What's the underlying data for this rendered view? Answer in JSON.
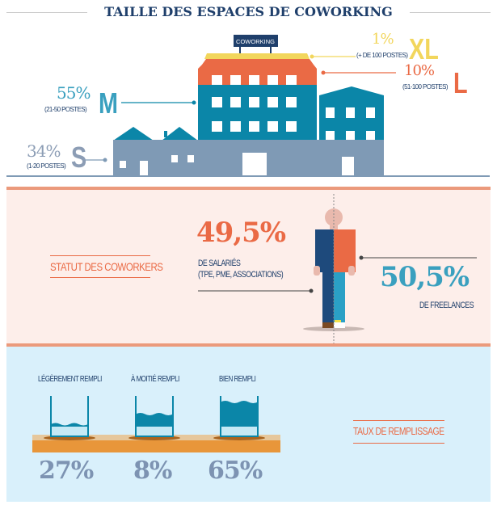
{
  "header": {
    "title": "TAILLE DES ESPACES DE COWORKING"
  },
  "building": {
    "sign": "COWORKING"
  },
  "sizes": [
    {
      "id": "xl",
      "percent": "1%",
      "letter": "XL",
      "range": "(+ DE 100 POSTES)",
      "color": "#f2d65c"
    },
    {
      "id": "l",
      "percent": "10%",
      "letter": "L",
      "range": "(51-100 POSTES)",
      "color": "#ea6a45"
    },
    {
      "id": "m",
      "percent": "55%",
      "letter": "M",
      "range": "(21-50 POSTES)",
      "color": "#3aa0bf"
    },
    {
      "id": "s",
      "percent": "34%",
      "letter": "S",
      "range": "(1-20 POSTES)",
      "color": "#8c9db5"
    }
  ],
  "status": {
    "heading": "STATUT DES COWORKERS",
    "employees": {
      "percent": "49,5%",
      "line1": "DE SALARIÉS",
      "line2": "(TPE, PME, ASSOCIATIONS)"
    },
    "freelancers": {
      "percent": "50,5%",
      "label": "DE FREELANCES"
    }
  },
  "fill": {
    "heading": "TAUX DE REMPLISSAGE",
    "levels": [
      {
        "label": "LÉGÈREMENT REMPLI",
        "percent": "27%",
        "fill": 0.3
      },
      {
        "label": "À MOITIÉ REMPLI",
        "percent": "8%",
        "fill": 0.55
      },
      {
        "label": "BIEN REMPLI",
        "percent": "65%",
        "fill": 0.85
      }
    ]
  },
  "colors": {
    "navy": "#1f3f6b",
    "orange": "#ea6a45",
    "teal": "#3aa0bf",
    "gray": "#8c9db5",
    "yellow": "#f2d65c",
    "pink_bg": "#fdeeea",
    "blue_bg": "#d9f0fb"
  }
}
